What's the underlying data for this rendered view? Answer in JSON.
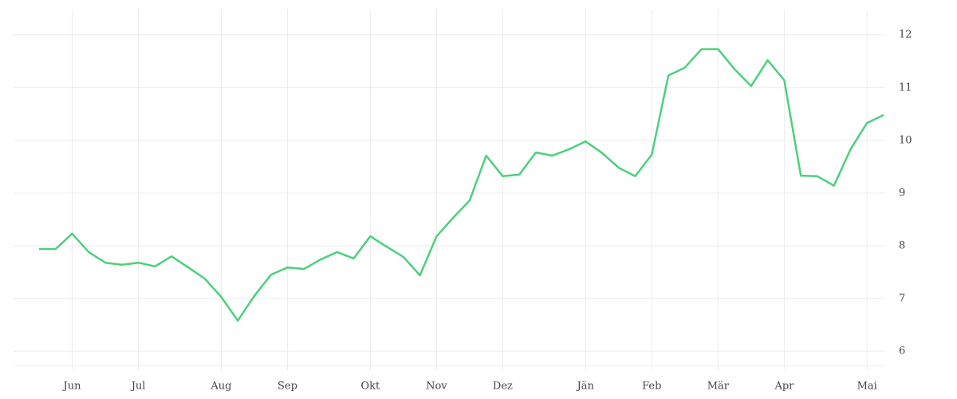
{
  "chart_data": {
    "type": "line",
    "categories": [
      null,
      null,
      "Jun",
      null,
      null,
      null,
      "Jul",
      null,
      null,
      null,
      null,
      "Aug",
      null,
      null,
      null,
      "Sep",
      null,
      null,
      null,
      null,
      "Okt",
      null,
      null,
      null,
      "Nov",
      null,
      null,
      null,
      "Dez",
      null,
      null,
      null,
      null,
      "Jän",
      null,
      null,
      null,
      "Feb",
      null,
      null,
      null,
      "Mär",
      null,
      null,
      null,
      "Apr",
      null,
      null,
      null,
      null,
      "Mai",
      null
    ],
    "series": [
      {
        "color": "#4cd07d",
        "values": [
          7.94,
          7.94,
          8.23,
          7.88,
          7.68,
          7.64,
          7.68,
          7.61,
          7.8,
          7.59,
          7.38,
          7.03,
          6.58,
          7.05,
          7.45,
          7.59,
          7.56,
          7.74,
          7.88,
          7.76,
          8.18,
          7.98,
          7.79,
          7.44,
          8.18,
          8.53,
          8.86,
          9.71,
          9.32,
          9.35,
          9.77,
          9.71,
          9.83,
          9.98,
          9.76,
          9.48,
          9.32,
          9.73,
          11.23,
          11.38,
          11.73,
          11.73,
          11.35,
          11.03,
          11.52,
          11.14,
          9.33,
          9.32,
          9.14,
          9.83,
          10.33,
          10.48
        ]
      }
    ],
    "ylim": [
      5.73,
      12.48
    ],
    "yticks": [
      6,
      7,
      8,
      9,
      10,
      11,
      12
    ],
    "grid": true
  }
}
